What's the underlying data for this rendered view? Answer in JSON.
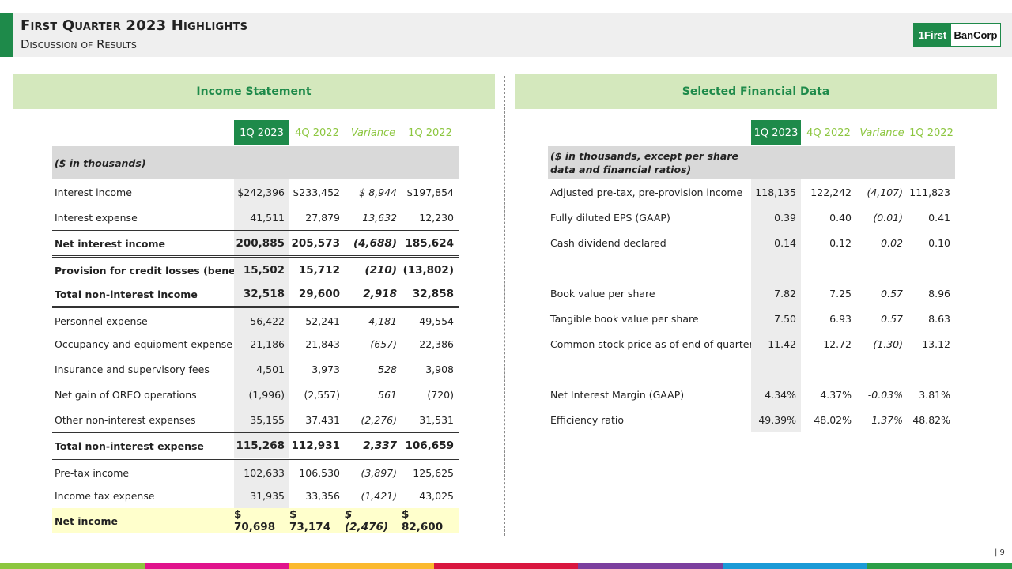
{
  "header": {
    "title": "First Quarter 2023 Highlights",
    "subtitle": "Discussion of Results",
    "logo_left": "1First",
    "logo_right": "BanCorp"
  },
  "colors": {
    "brand_green": "#1e8a4a",
    "light_green": "#d4e8bd",
    "column_green": "#8cc63f",
    "footer_bar": [
      "#8cc63f",
      "#e0138c",
      "#fbb92e",
      "#d9163f",
      "#7b3f9e",
      "#1b9ad6",
      "#2b9e48"
    ]
  },
  "income": {
    "title": "Income Statement",
    "columns": [
      "1Q 2023",
      "4Q 2022",
      "Variance",
      "1Q 2022"
    ],
    "note": "($ in thousands)",
    "rows": [
      {
        "label": "Interest income",
        "v": [
          "$242,396",
          "$233,452",
          "$   8,944",
          "$197,854"
        ]
      },
      {
        "label": "Interest expense",
        "v": [
          "41,511",
          "27,879",
          "13,632",
          "12,230"
        ]
      },
      {
        "label": "Net interest income",
        "v": [
          "200,885",
          "205,573",
          "(4,688)",
          "185,624"
        ]
      },
      {
        "label": "Provision for credit losses (benefit)",
        "v": [
          "15,502",
          "15,712",
          "(210)",
          "(13,802)"
        ]
      },
      {
        "label": "Total non-interest income",
        "v": [
          "32,518",
          "29,600",
          "2,918",
          "32,858"
        ]
      },
      {
        "label": "Personnel expense",
        "v": [
          "56,422",
          "52,241",
          "4,181",
          "49,554"
        ]
      },
      {
        "label": "Occupancy and equipment expense",
        "v": [
          "21,186",
          "21,843",
          "(657)",
          "22,386"
        ]
      },
      {
        "label": "Insurance and supervisory fees",
        "v": [
          "4,501",
          "3,973",
          "528",
          "3,908"
        ]
      },
      {
        "label": "Net gain of OREO operations",
        "v": [
          "(1,996)",
          "(2,557)",
          "561",
          "(720)"
        ]
      },
      {
        "label": "Other non-interest expenses",
        "v": [
          "35,155",
          "37,431",
          "(2,276)",
          "31,531"
        ]
      },
      {
        "label": "Total non-interest expense",
        "v": [
          "115,268",
          "112,931",
          "2,337",
          "106,659"
        ]
      },
      {
        "label": "Pre-tax income",
        "v": [
          "102,633",
          "106,530",
          "(3,897)",
          "125,625"
        ]
      },
      {
        "label": "Income tax expense",
        "v": [
          "31,935",
          "33,356",
          "(1,421)",
          "43,025"
        ]
      },
      {
        "label": "Net income",
        "v": [
          "$ 70,698",
          "$ 73,174",
          "$  (2,476)",
          "$ 82,600"
        ]
      }
    ]
  },
  "selected": {
    "title": "Selected Financial Data",
    "columns": [
      "1Q 2023",
      "4Q 2022",
      "Variance",
      "1Q 2022"
    ],
    "note": "($ in thousands, except per share data and financial ratios)",
    "rows": [
      {
        "label": "Adjusted pre-tax, pre-provision income",
        "v": [
          "118,135",
          "122,242",
          "(4,107)",
          "111,823"
        ]
      },
      {
        "label": "Fully diluted EPS (GAAP)",
        "v": [
          "0.39",
          "0.40",
          "(0.01)",
          "0.41"
        ]
      },
      {
        "label": "Cash dividend declared",
        "v": [
          "0.14",
          "0.12",
          "0.02",
          "0.10"
        ]
      },
      {
        "label": "",
        "v": [
          "",
          "",
          "",
          ""
        ]
      },
      {
        "label": "Book value per share",
        "v": [
          "7.82",
          "7.25",
          "0.57",
          "8.96"
        ]
      },
      {
        "label": "Tangible book value per share",
        "v": [
          "7.50",
          "6.93",
          "0.57",
          "8.63"
        ]
      },
      {
        "label": "Common stock price as of end of quarter",
        "v": [
          "11.42",
          "12.72",
          "(1.30)",
          "13.12"
        ]
      },
      {
        "label": "",
        "v": [
          "",
          "",
          "",
          ""
        ]
      },
      {
        "label": "Net Interest Margin (GAAP)",
        "v": [
          "4.34%",
          "4.37%",
          "-0.03%",
          "3.81%"
        ]
      },
      {
        "label": "Efficiency ratio",
        "v": [
          "49.39%",
          "48.02%",
          "1.37%",
          "48.82%"
        ]
      }
    ]
  },
  "footer": {
    "page": "| 9"
  }
}
